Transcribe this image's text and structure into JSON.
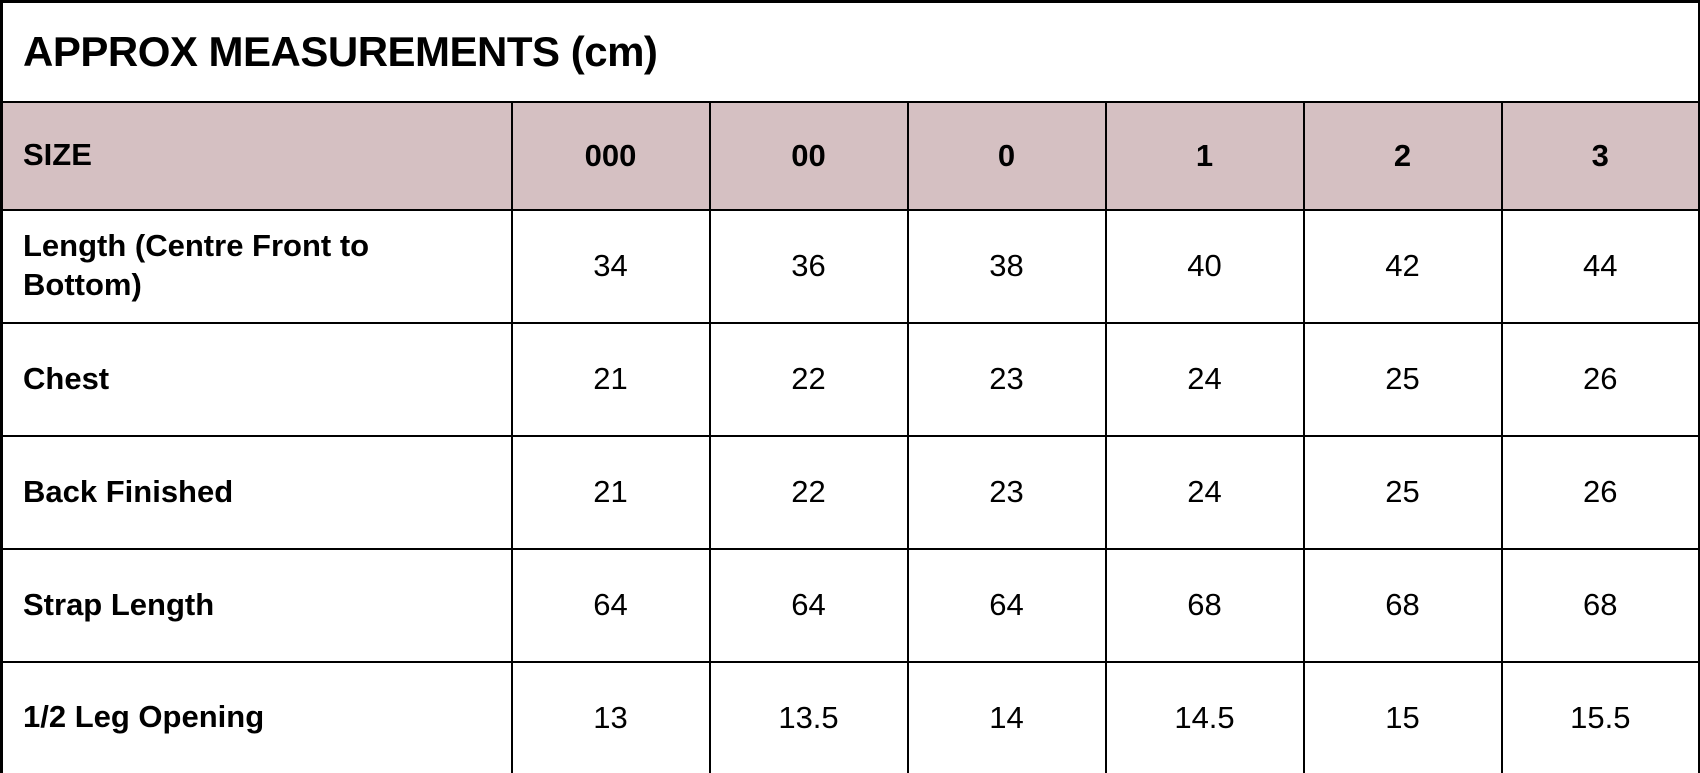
{
  "table": {
    "title": "APPROX MEASUREMENTS (cm)",
    "header": [
      "SIZE",
      "000",
      "00",
      "0",
      "1",
      "2",
      "3"
    ],
    "rows": [
      {
        "label": "Length (Centre Front to Bottom)",
        "values": [
          "34",
          "36",
          "38",
          "40",
          "42",
          "44"
        ]
      },
      {
        "label": "Chest",
        "values": [
          "21",
          "22",
          "23",
          "24",
          "25",
          "26"
        ]
      },
      {
        "label": "Back Finished",
        "values": [
          "21",
          "22",
          "23",
          "24",
          "25",
          "26"
        ]
      },
      {
        "label": "Strap Length",
        "values": [
          "64",
          "64",
          "64",
          "68",
          "68",
          "68"
        ]
      },
      {
        "label": "1/2 Leg Opening",
        "values": [
          "13",
          "13.5",
          "14",
          "14.5",
          "15",
          "15.5"
        ]
      }
    ],
    "colors": {
      "header_background": "#d5c0c2",
      "border": "#000000",
      "text": "#000000",
      "background": "#ffffff"
    }
  },
  "chart_data": {
    "type": "table",
    "title": "APPROX MEASUREMENTS (cm)",
    "columns": [
      "SIZE",
      "000",
      "00",
      "0",
      "1",
      "2",
      "3"
    ],
    "rows": [
      [
        "Length (Centre Front to Bottom)",
        34,
        36,
        38,
        40,
        42,
        44
      ],
      [
        "Chest",
        21,
        22,
        23,
        24,
        25,
        26
      ],
      [
        "Back Finished",
        21,
        22,
        23,
        24,
        25,
        26
      ],
      [
        "Strap Length",
        64,
        64,
        64,
        68,
        68,
        68
      ],
      [
        "1/2 Leg Opening",
        13,
        13.5,
        14,
        14.5,
        15,
        15.5
      ]
    ]
  }
}
